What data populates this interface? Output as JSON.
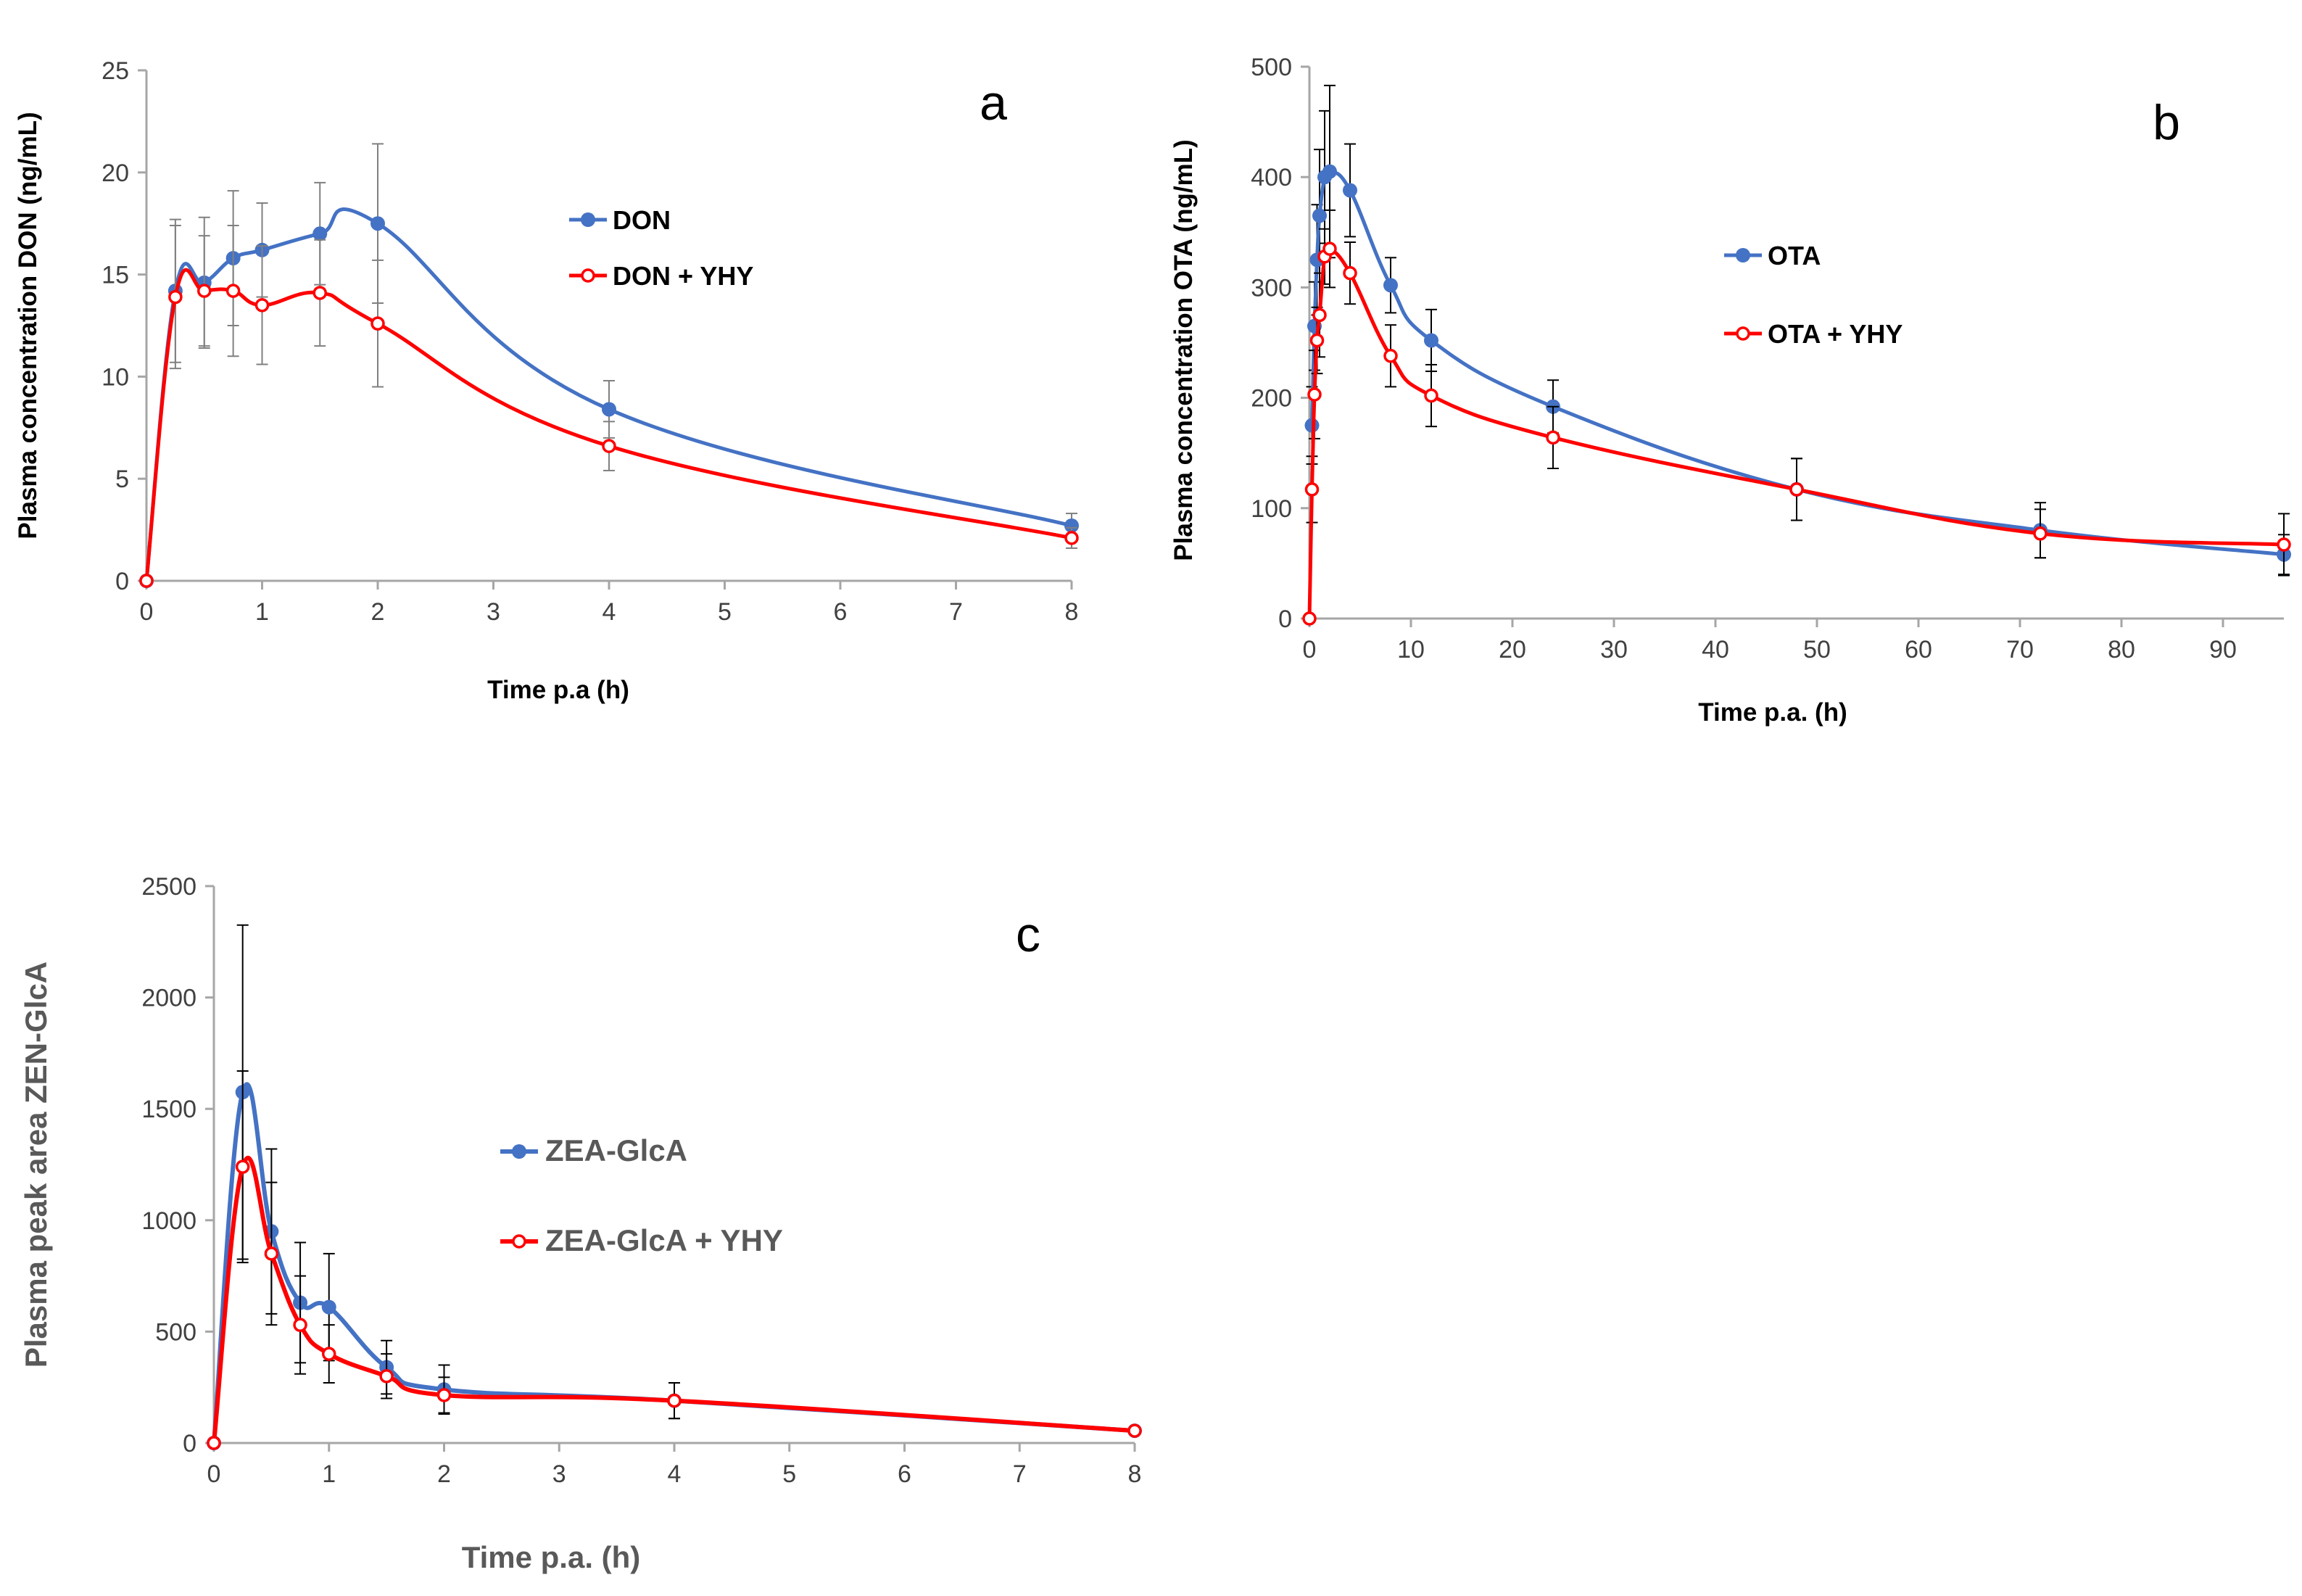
{
  "colors": {
    "series_a": "#4472C4",
    "series_b": "#FF0000",
    "axis": "#A6A6A6",
    "error_a": "#808080",
    "error_b": "#000000"
  },
  "chart_data": [
    {
      "panel": "a",
      "type": "line",
      "title": "",
      "panel_label": "a",
      "xlabel": "Time p.a (h)",
      "ylabel": "Plasma concentration DON (ng/mL)",
      "xlim": [
        0,
        8
      ],
      "ylim": [
        0,
        25
      ],
      "xticks": [
        0,
        1,
        2,
        3,
        4,
        5,
        6,
        7,
        8
      ],
      "yticks": [
        0,
        5,
        10,
        15,
        20,
        25
      ],
      "grid": false,
      "legend_position": "upper-center",
      "series": [
        {
          "name": "DON",
          "x": [
            0,
            0.25,
            0.5,
            0.75,
            1,
            1.5,
            2,
            4,
            8
          ],
          "y": [
            0,
            14.2,
            14.6,
            15.8,
            16.2,
            17.0,
            17.5,
            8.4,
            2.7
          ],
          "err": [
            0,
            3.5,
            3.2,
            3.3,
            2.3,
            2.5,
            3.9,
            1.4,
            0.6
          ]
        },
        {
          "name": "DON + YHY",
          "x": [
            0,
            0.25,
            0.5,
            0.75,
            1,
            1.5,
            2,
            4,
            8
          ],
          "y": [
            0,
            13.9,
            14.2,
            14.2,
            13.5,
            14.1,
            12.6,
            6.6,
            2.1
          ],
          "err": [
            0,
            3.5,
            2.7,
            3.2,
            2.9,
            2.6,
            3.1,
            1.2,
            0.5
          ]
        }
      ]
    },
    {
      "panel": "b",
      "type": "line",
      "title": "",
      "panel_label": "b",
      "xlabel": "Time p.a. (h)",
      "ylabel": "Plasma concentration OTA (ng/mL)",
      "xlim": [
        0,
        96
      ],
      "ylim": [
        0,
        500
      ],
      "xticks": [
        0,
        10,
        20,
        30,
        40,
        50,
        60,
        70,
        80,
        90
      ],
      "yticks": [
        0,
        100,
        200,
        300,
        400,
        500
      ],
      "grid": false,
      "legend_position": "center-right",
      "series": [
        {
          "name": "OTA",
          "x": [
            0.25,
            0.5,
            0.75,
            1,
            1.5,
            2,
            4,
            8,
            12,
            24,
            48,
            72,
            96
          ],
          "y": [
            175,
            265,
            325,
            365,
            400,
            405,
            388,
            302,
            252,
            192,
            117,
            80,
            58
          ],
          "err": [
            35,
            40,
            50,
            60,
            60,
            78,
            42,
            25,
            28,
            24,
            28,
            25,
            18
          ]
        },
        {
          "name": "OTA + YHY",
          "x": [
            0,
            0.25,
            0.5,
            0.75,
            1,
            1.5,
            2,
            4,
            8,
            12,
            24,
            48,
            72,
            96
          ],
          "y": [
            0,
            117,
            203,
            252,
            275,
            328,
            335,
            313,
            238,
            202,
            164,
            117,
            77,
            67
          ],
          "err": [
            0,
            30,
            40,
            30,
            38,
            25,
            35,
            28,
            28,
            28,
            28,
            28,
            22,
            28
          ]
        }
      ]
    },
    {
      "panel": "c",
      "type": "line",
      "title": "",
      "panel_label": "c",
      "xlabel": "Time p.a. (h)",
      "ylabel": "Plasma peak area ZEN-GlcA",
      "xlim": [
        0,
        8
      ],
      "ylim": [
        0,
        2500
      ],
      "xticks": [
        0,
        1,
        2,
        3,
        4,
        5,
        6,
        7,
        8
      ],
      "yticks": [
        0,
        500,
        1000,
        1500,
        2000,
        2500
      ],
      "grid": false,
      "legend_position": "center",
      "series": [
        {
          "name": "ZEA-GlcA",
          "x": [
            0,
            0.25,
            0.5,
            0.75,
            1,
            1.5,
            2,
            4,
            8
          ],
          "y": [
            0,
            1575,
            950,
            630,
            610,
            340,
            240,
            190,
            55
          ],
          "err": [
            0,
            750,
            370,
            270,
            240,
            120,
            110,
            80,
            15
          ]
        },
        {
          "name": "ZEA-GlcA + YHY",
          "x": [
            0,
            0.25,
            0.5,
            0.75,
            1,
            1.5,
            2,
            4,
            8
          ],
          "y": [
            0,
            1240,
            850,
            530,
            400,
            300,
            215,
            190,
            55
          ],
          "err": [
            0,
            430,
            320,
            220,
            130,
            100,
            80,
            80,
            15
          ]
        }
      ]
    }
  ]
}
